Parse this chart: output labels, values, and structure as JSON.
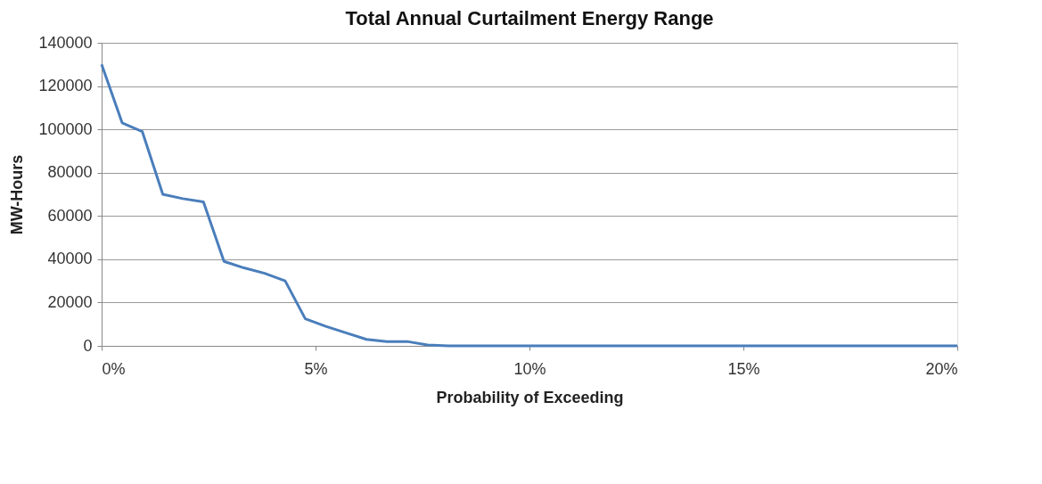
{
  "chart_data": {
    "type": "line",
    "title": "Total Annual Curtailment Energy Range",
    "xlabel": "Probability of Exceeding",
    "ylabel": "MW-Hours",
    "x": [
      0,
      0.48,
      0.95,
      1.43,
      1.9,
      2.38,
      2.86,
      3.33,
      3.81,
      4.29,
      4.76,
      5.24,
      5.71,
      6.19,
      6.67,
      7.14,
      7.62,
      8.1,
      20
    ],
    "series": [
      {
        "color": "#4a7ebb",
        "values": [
          130000,
          103000,
          99000,
          70000,
          68000,
          66500,
          39000,
          36000,
          33500,
          30000,
          12500,
          9000,
          6000,
          3000,
          2000,
          2000,
          400,
          0,
          0
        ]
      }
    ],
    "xlim": [
      0,
      20
    ],
    "xticks": [
      {
        "value": 0,
        "label": "0%"
      },
      {
        "value": 5,
        "label": "5%"
      },
      {
        "value": 10,
        "label": "10%"
      },
      {
        "value": 15,
        "label": "15%"
      },
      {
        "value": 20,
        "label": "20%"
      }
    ],
    "ylim": [
      0,
      140000
    ],
    "yticks": [
      0,
      20000,
      40000,
      60000,
      80000,
      100000,
      120000,
      140000
    ],
    "grid": "y",
    "marker": "none",
    "line_style": "solid"
  }
}
